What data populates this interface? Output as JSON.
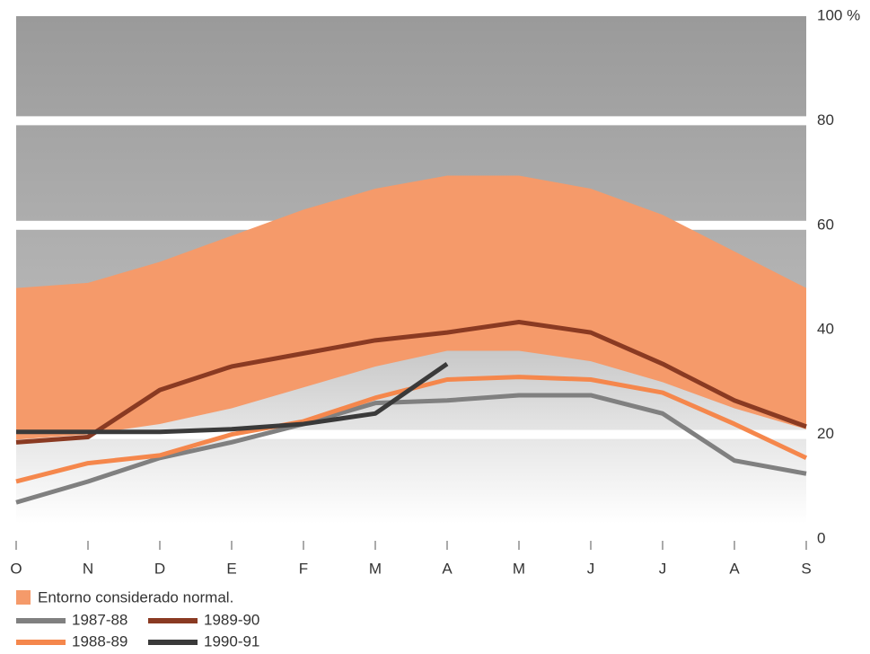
{
  "chart_data": {
    "type": "line",
    "categories": [
      "O",
      "N",
      "D",
      "E",
      "F",
      "M",
      "A",
      "M",
      "J",
      "J",
      "A",
      "S"
    ],
    "band": {
      "name": "Entorno considerado normal.",
      "color": "#f59a6a",
      "upper": [
        48,
        49,
        53,
        58,
        63,
        67,
        69.5,
        69.5,
        67,
        62,
        55,
        48
      ],
      "lower": [
        19,
        20,
        22,
        25,
        29,
        33,
        36,
        36,
        34,
        30,
        25,
        21
      ]
    },
    "series": [
      {
        "name": "1987-88",
        "color": "#808080",
        "values": [
          7,
          11,
          15.5,
          18.5,
          22,
          26,
          26.5,
          27.5,
          27.5,
          24,
          15,
          12.5
        ]
      },
      {
        "name": "1988-89",
        "color": "#f5874c",
        "values": [
          11,
          14.5,
          16,
          20,
          22.5,
          27,
          30.5,
          31,
          30.5,
          28,
          22,
          15.5
        ]
      },
      {
        "name": "1989-90",
        "color": "#8a3a22",
        "values": [
          18.5,
          19.5,
          28.5,
          33,
          35.5,
          38,
          39.5,
          41.5,
          39.5,
          33.5,
          26.5,
          21.5
        ]
      },
      {
        "name": "1990-91",
        "color": "#3a3a3a",
        "values": [
          20.5,
          20.5,
          20.5,
          21,
          22,
          24,
          33.5,
          null,
          null,
          null,
          null,
          null
        ]
      }
    ],
    "ylim": [
      0,
      100
    ],
    "yticks": [
      0,
      20,
      40,
      60,
      80,
      {
        "value": 100,
        "label": "100 %"
      }
    ],
    "grid": true
  }
}
